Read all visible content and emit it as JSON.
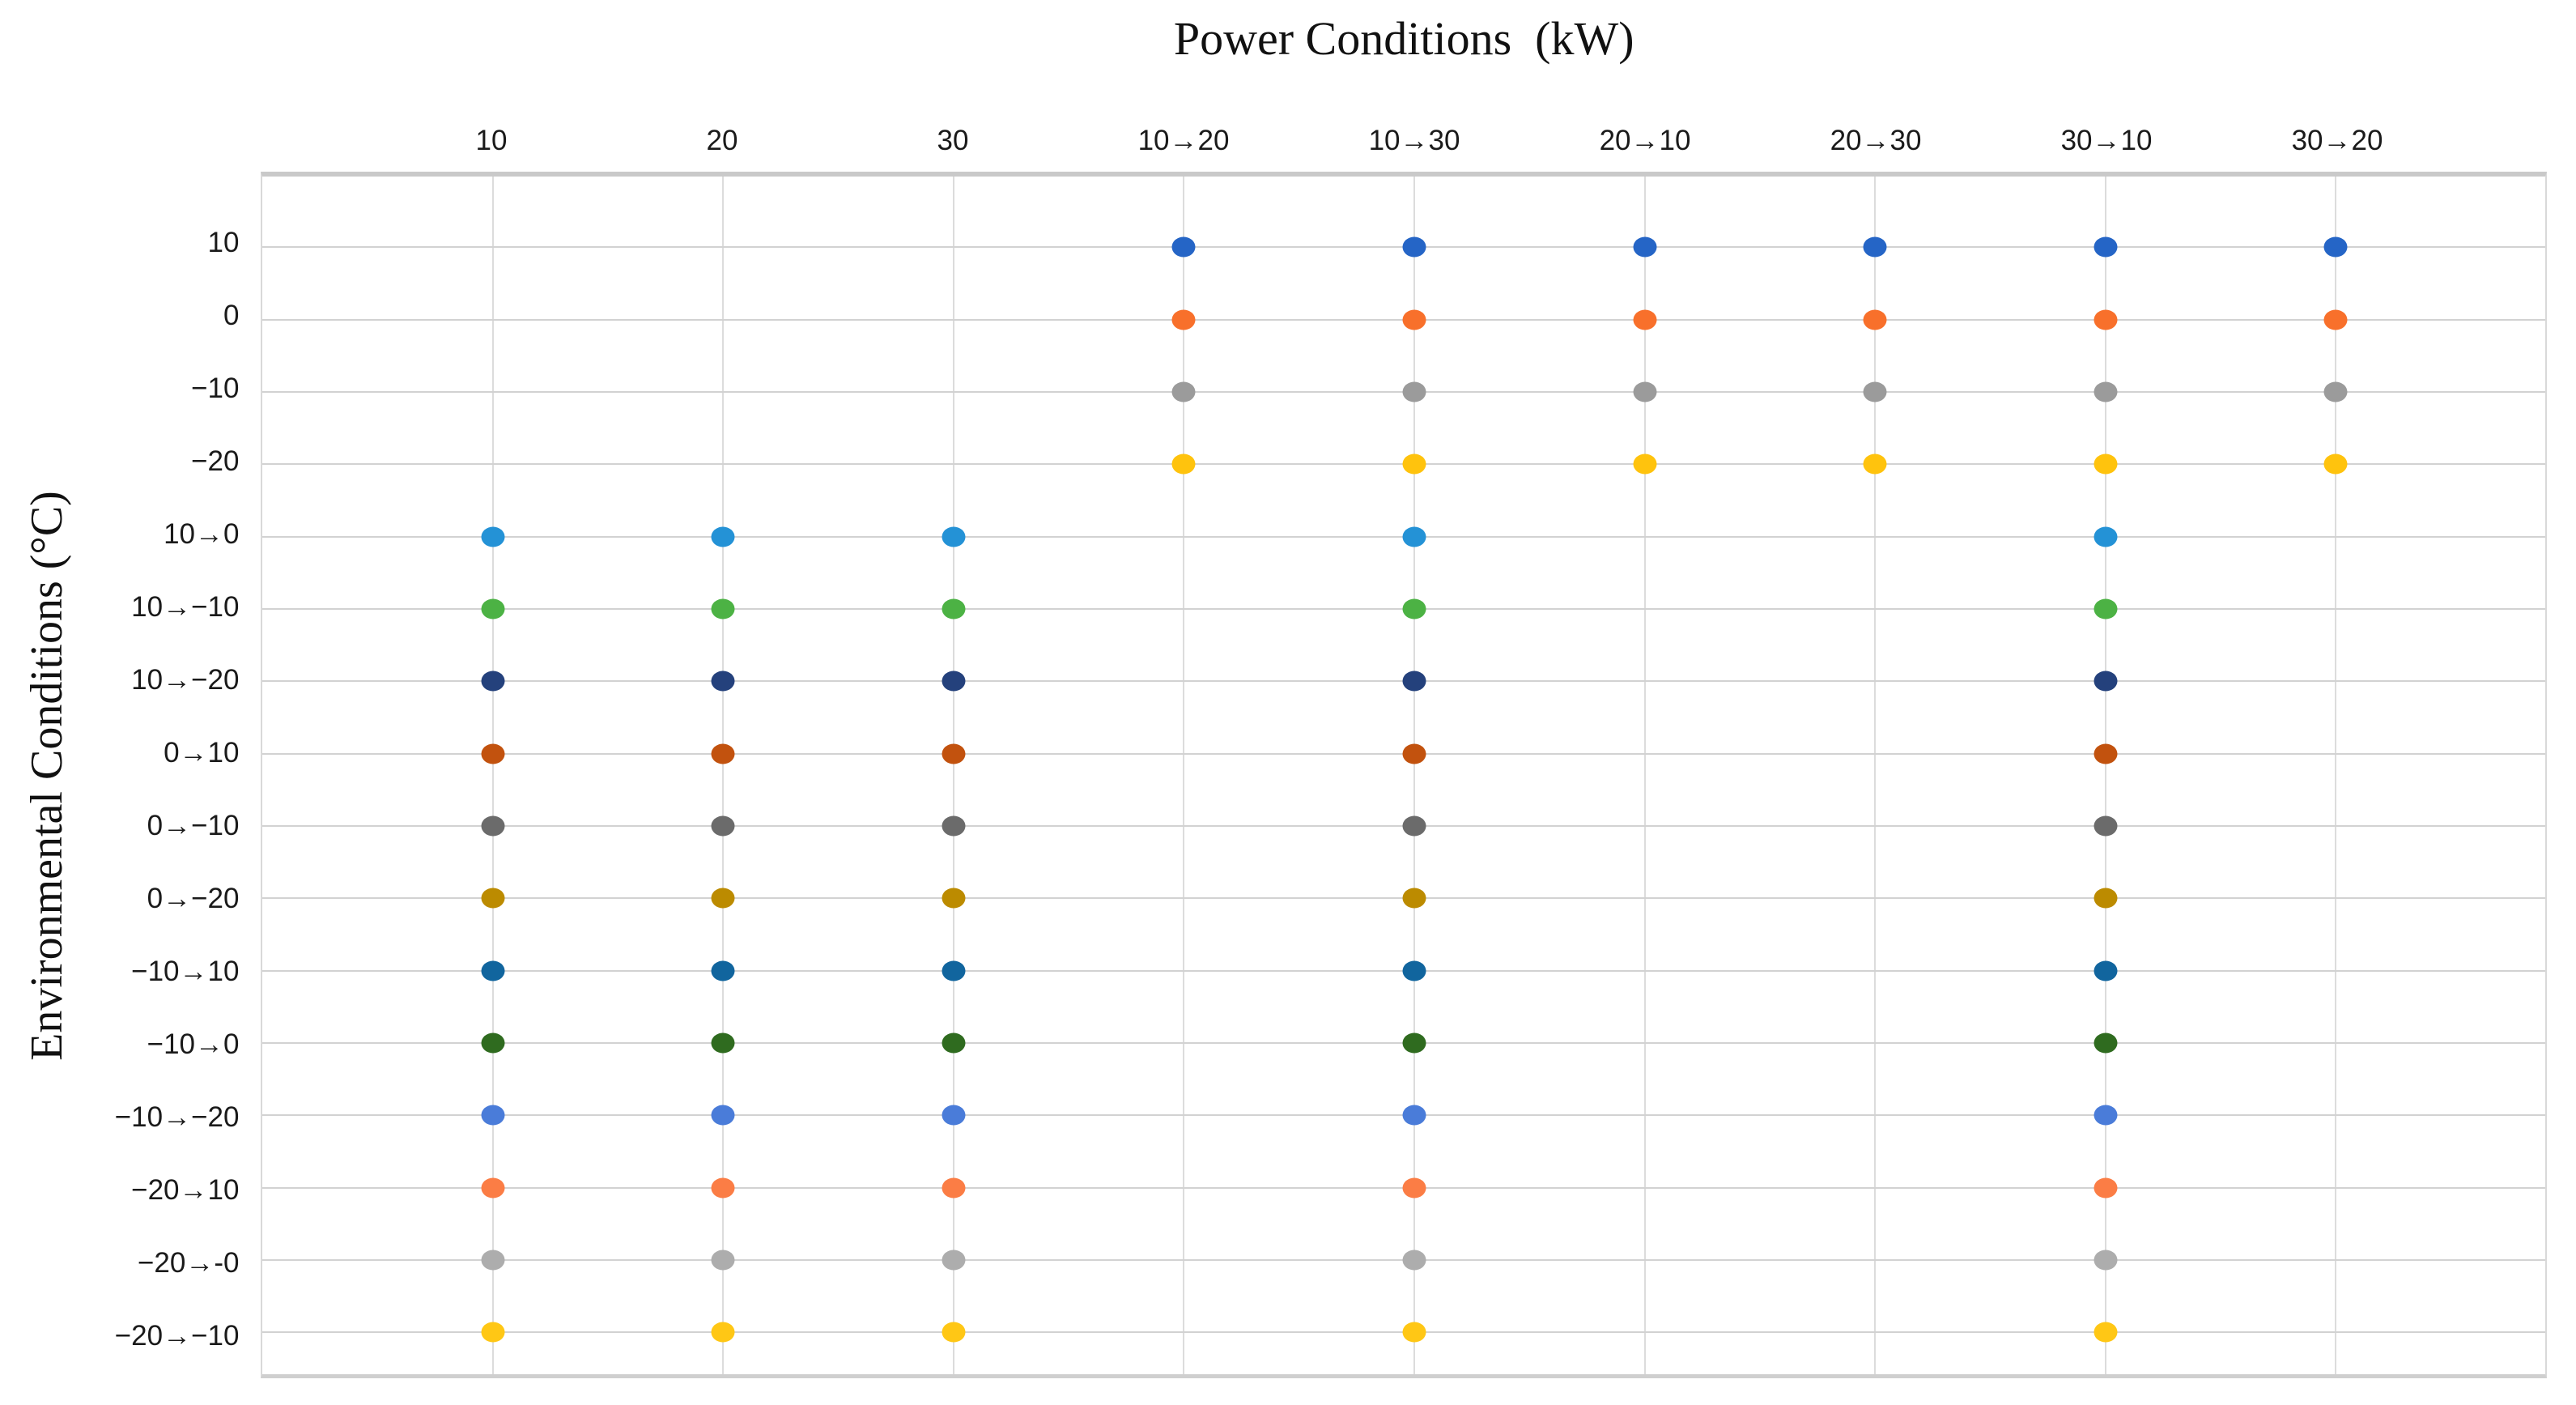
{
  "title": "Power Conditions  (kW)",
  "chart_data": {
    "type": "scatter",
    "title": "Power Conditions (kW)",
    "x_axis": {
      "title": "Power Conditions (kW)",
      "position": "top",
      "categories": [
        "10",
        "20",
        "30",
        "10→20",
        "10→30",
        "20→10",
        "20→30",
        "30→10",
        "30→20"
      ]
    },
    "y_axis": {
      "title": "Environmental Conditions (°C)",
      "categories": [
        "10",
        "0",
        "−10",
        "−20",
        "10→0",
        "10→−10",
        "10→−20",
        "0→10",
        "0→−10",
        "0→−20",
        "−10→10",
        "−10→0",
        "−10→−20",
        "−20→10",
        "−20→-0",
        "−20→−10"
      ]
    },
    "grid": true,
    "legend": "none",
    "marker": "filled-circle",
    "series": [
      {
        "name": "10",
        "color": "#2565C6",
        "points": [
          "10→20",
          "10→30",
          "20→10",
          "20→30",
          "30→10",
          "30→20"
        ]
      },
      {
        "name": "0",
        "color": "#F8702B",
        "points": [
          "10→20",
          "10→30",
          "20→10",
          "20→30",
          "30→10",
          "30→20"
        ]
      },
      {
        "name": "−10",
        "color": "#9B9B9B",
        "points": [
          "10→20",
          "10→30",
          "20→10",
          "20→30",
          "30→10",
          "30→20"
        ]
      },
      {
        "name": "−20",
        "color": "#FFC30D",
        "points": [
          "10→20",
          "10→30",
          "20→10",
          "20→30",
          "30→10",
          "30→20"
        ]
      },
      {
        "name": "10→0",
        "color": "#2492D6",
        "points": [
          "10",
          "20",
          "30",
          "10→30",
          "30→10"
        ]
      },
      {
        "name": "10→−10",
        "color": "#4CB244",
        "points": [
          "10",
          "20",
          "30",
          "10→30",
          "30→10"
        ]
      },
      {
        "name": "10→−20",
        "color": "#24417C",
        "points": [
          "10",
          "20",
          "30",
          "10→30",
          "30→10"
        ]
      },
      {
        "name": "0→10",
        "color": "#C2520E",
        "points": [
          "10",
          "20",
          "30",
          "10→30",
          "30→10"
        ]
      },
      {
        "name": "0→−10",
        "color": "#6B6B6B",
        "points": [
          "10",
          "20",
          "30",
          "10→30",
          "30→10"
        ]
      },
      {
        "name": "0→−20",
        "color": "#BC8B00",
        "points": [
          "10",
          "20",
          "30",
          "10→30",
          "30→10"
        ]
      },
      {
        "name": "−10→10",
        "color": "#11659E",
        "points": [
          "10",
          "20",
          "30",
          "10→30",
          "30→10"
        ]
      },
      {
        "name": "−10→0",
        "color": "#2F6B1F",
        "points": [
          "10",
          "20",
          "30",
          "10→30",
          "30→10"
        ]
      },
      {
        "name": "−10→−20",
        "color": "#4A7CD9",
        "points": [
          "10",
          "20",
          "30",
          "10→30",
          "30→10"
        ]
      },
      {
        "name": "−20→10",
        "color": "#FB7D45",
        "points": [
          "10",
          "20",
          "30",
          "10→30",
          "30→10"
        ]
      },
      {
        "name": "−20→-0",
        "color": "#ADADAD",
        "points": [
          "10",
          "20",
          "30",
          "10→30",
          "30→10"
        ]
      },
      {
        "name": "−20→−10",
        "color": "#FFC715",
        "points": [
          "10",
          "20",
          "30",
          "10→30",
          "30→10"
        ]
      }
    ]
  }
}
